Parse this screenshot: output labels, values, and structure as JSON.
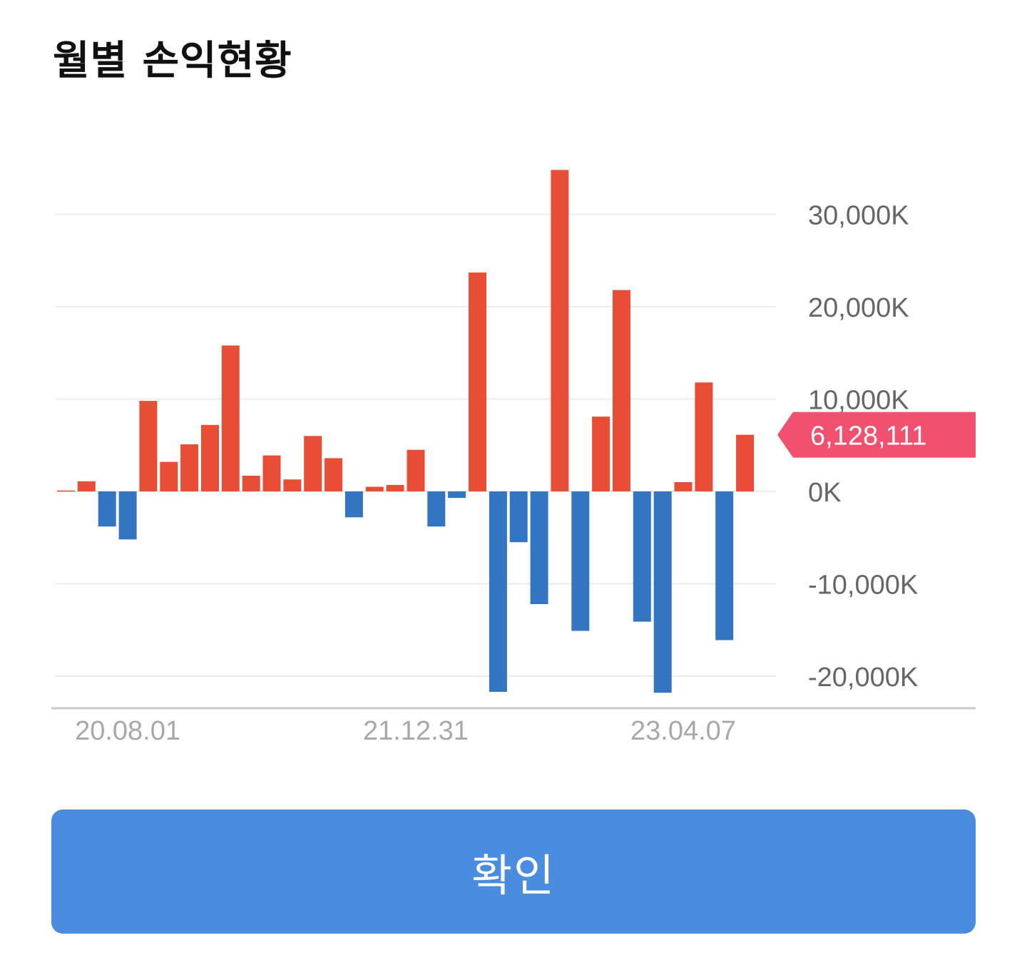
{
  "header": {
    "title": "월별 손익현황"
  },
  "colors": {
    "positive": "#e84e36",
    "negative": "#3375c0",
    "marker": "#f2506f",
    "grid": "#ebebeb",
    "axis": "#c8c8c8",
    "button": "#4a8ce0"
  },
  "chart_data": {
    "type": "bar",
    "title": "월별 손익현황",
    "xlabel": "",
    "ylabel": "",
    "ylim": [
      -23000,
      35000
    ],
    "yticks": [
      30000,
      20000,
      10000,
      0,
      -10000,
      -20000
    ],
    "ytick_labels": [
      "30,000K",
      "20,000K",
      "10,000K",
      "0K",
      "-10,000K",
      "-20,000K"
    ],
    "xtick_labels": [
      {
        "label": "20.08.01",
        "index": 3
      },
      {
        "label": "21.12.31",
        "index": 17
      },
      {
        "label": "23.04.07",
        "index": 30
      }
    ],
    "grid": true,
    "values_unit": "K",
    "values": [
      100,
      1100,
      -3800,
      -5200,
      9800,
      3200,
      5100,
      7200,
      15800,
      1700,
      3900,
      1300,
      6000,
      3600,
      -2800,
      500,
      700,
      4500,
      -3800,
      -700,
      23700,
      -21700,
      -5500,
      -12200,
      34800,
      -15100,
      8100,
      21800,
      -14100,
      -21800,
      1000,
      11800,
      -16100,
      6128
    ],
    "current_value_label": "6,128,111",
    "current_value": 6128
  },
  "footer": {
    "confirm_label": "확인"
  }
}
